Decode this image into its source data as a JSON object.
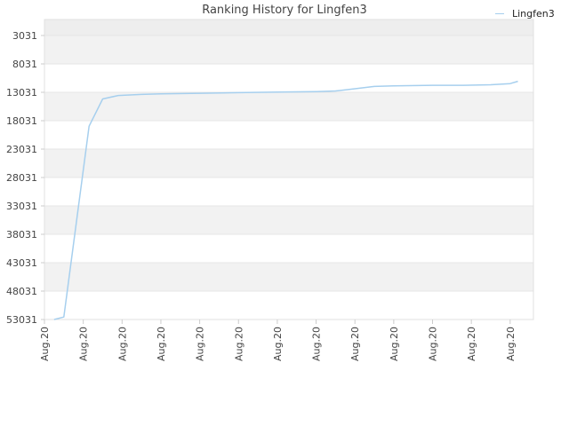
{
  "chart_data": {
    "type": "line",
    "title": "Ranking History for Lingfen3",
    "xlabel": "",
    "ylabel": "",
    "y_inverted": true,
    "ylim": [
      53031,
      3031
    ],
    "yticks": [
      3031,
      8031,
      13031,
      18031,
      23031,
      28031,
      33031,
      38031,
      43031,
      48031,
      53031
    ],
    "xticks": [
      "Aug.20",
      "Aug.20",
      "Aug.20",
      "Aug.20",
      "Aug.20",
      "Aug.20",
      "Aug.20",
      "Aug.20",
      "Aug.20",
      "Aug.20",
      "Aug.20",
      "Aug.20",
      "Aug.20"
    ],
    "legend_position": "top-right",
    "grid": true,
    "colors": {
      "line": "#a6cfee",
      "band": "#f2f2f2",
      "grid": "#e6e6e6"
    },
    "series": [
      {
        "name": "Lingfen3",
        "x": [
          0.25,
          0.5,
          1.15,
          1.5,
          1.9,
          2.5,
          3.0,
          4.0,
          5.0,
          6.0,
          7.0,
          7.5,
          8.0,
          8.5,
          9.0,
          10.0,
          10.8,
          11.5,
          12.0,
          12.2
        ],
        "y": [
          53031,
          52600,
          19000,
          14200,
          13600,
          13400,
          13300,
          13200,
          13100,
          13000,
          12900,
          12800,
          12400,
          12000,
          11900,
          11800,
          11800,
          11700,
          11500,
          11100
        ]
      }
    ]
  }
}
